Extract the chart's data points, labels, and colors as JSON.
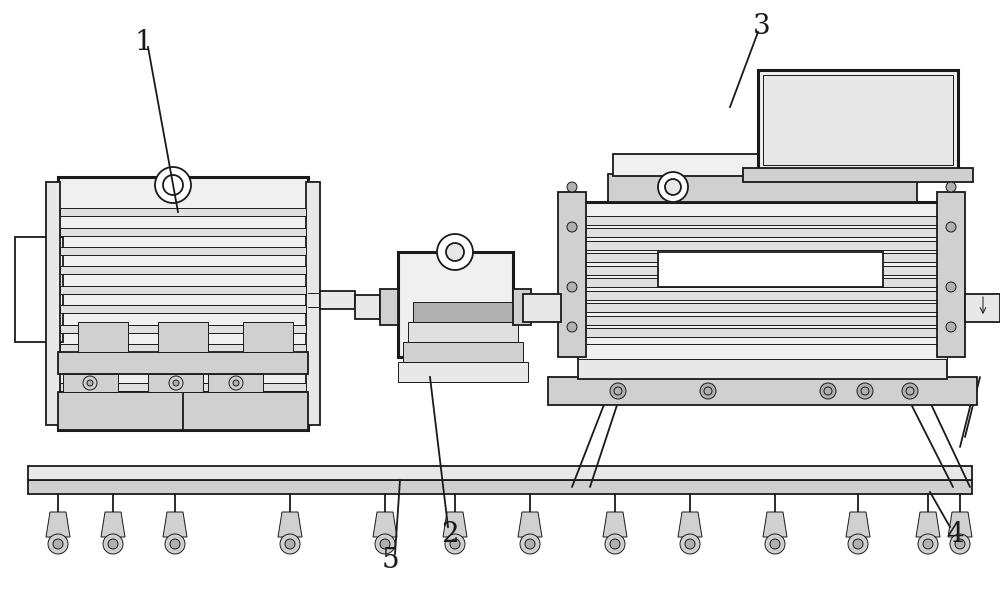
{
  "bg_color": "#ffffff",
  "line_color": "#1a1a1a",
  "lw_thin": 0.7,
  "lw_med": 1.3,
  "lw_thick": 2.2,
  "label_fontsize": 20,
  "figsize": [
    10.0,
    6.02
  ],
  "dpi": 100,
  "xlim": [
    0,
    1000
  ],
  "ylim": [
    0,
    602
  ],
  "gray_light": "#e8e8e8",
  "gray_med": "#d0d0d0",
  "gray_dark": "#b0b0b0",
  "fill_body": "#f0f0f0",
  "fill_rib": "#e0e0e0",
  "fill_base": "#d8d8d8",
  "fill_white": "#ffffff"
}
